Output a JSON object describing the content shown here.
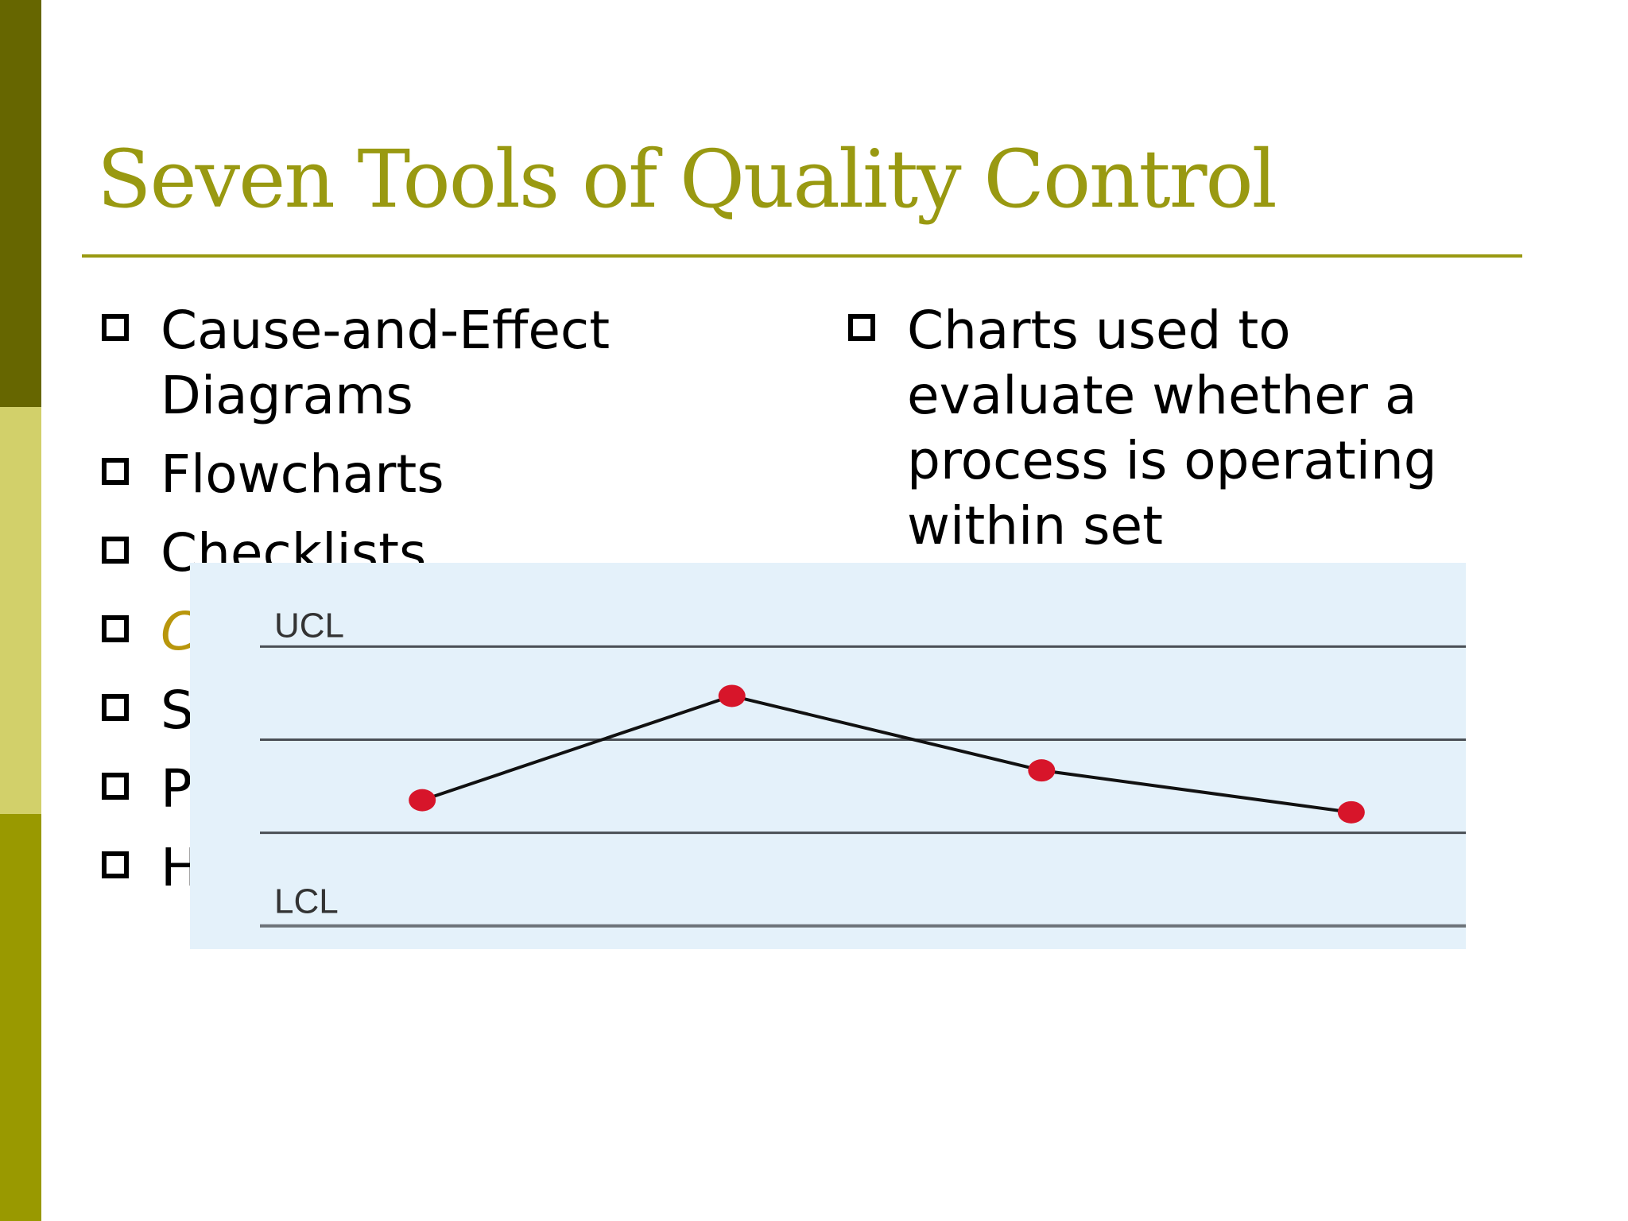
{
  "slide": {
    "title": "Seven Tools of Quality Control",
    "left_bullets": [
      {
        "text": "Cause-and-Effect Diagrams"
      },
      {
        "text": "Flowcharts"
      },
      {
        "text": "Checklists"
      },
      {
        "text": "C",
        "highlight": true
      },
      {
        "text": "S"
      },
      {
        "text": "P"
      },
      {
        "text": "H"
      }
    ],
    "right_bullets": [
      {
        "text": "Charts used to evaluate whether a process is operating within set"
      }
    ],
    "colors": {
      "title": "#999911",
      "highlight": "#b8960c",
      "sidebar_top": "#666600",
      "sidebar_mid": "#d2d06a",
      "sidebar_bottom": "#999900",
      "chart_background": "#e4f1fa",
      "data_point": "#d7152a"
    },
    "icons": {
      "bullet": "hollow-square-icon"
    }
  },
  "chart_data": {
    "type": "line",
    "ucl_label": "UCL",
    "lcl_label": "LCL",
    "limits": {
      "ucl": 3,
      "upper_center": 2,
      "lower_center": 1,
      "lcl": 0
    },
    "ylim": [
      -0.25,
      3.9
    ],
    "points": [
      {
        "x": 1,
        "y": 1.35
      },
      {
        "x": 2,
        "y": 2.47
      },
      {
        "x": 3,
        "y": 1.67
      },
      {
        "x": 4,
        "y": 1.22
      }
    ],
    "xlim": [
      0.25,
      4.37
    ],
    "grid": false
  }
}
